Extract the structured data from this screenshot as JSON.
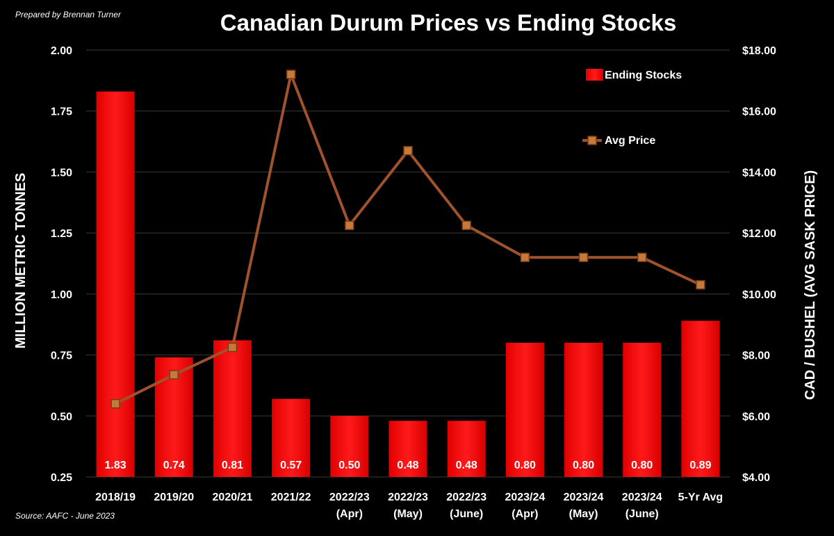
{
  "credit": "Prepared by Brennan Turner",
  "source": "Source: AAFC - June 2023",
  "chart_data": {
    "type": "bar",
    "title": "Canadian Durum Prices vs Ending Stocks",
    "categories": [
      [
        "2018/19"
      ],
      [
        "2019/20"
      ],
      [
        "2020/21"
      ],
      [
        "2021/22"
      ],
      [
        "2022/23",
        "(Apr)"
      ],
      [
        "2022/23",
        "(May)"
      ],
      [
        "2022/23",
        "(June)"
      ],
      [
        "2023/24",
        "(Apr)"
      ],
      [
        "2023/24",
        "(May)"
      ],
      [
        "2023/24",
        "(June)"
      ],
      [
        "5-Yr Avg"
      ]
    ],
    "series": [
      {
        "name": "Ending Stocks",
        "type": "bar",
        "axis": "left",
        "color": "#ff0000",
        "values": [
          1.83,
          0.74,
          0.81,
          0.57,
          0.5,
          0.48,
          0.48,
          0.8,
          0.8,
          0.8,
          0.89
        ],
        "labels": [
          "1.83",
          "0.74",
          "0.81",
          "0.57",
          "0.50",
          "0.48",
          "0.48",
          "0.80",
          "0.80",
          "0.80",
          "0.89"
        ]
      },
      {
        "name": "Avg Price",
        "type": "line",
        "axis": "right",
        "color": "#a0522d",
        "values": [
          6.4,
          7.35,
          8.25,
          17.2,
          12.25,
          14.7,
          12.25,
          11.2,
          11.2,
          11.2,
          10.3
        ]
      }
    ],
    "ylabel": "MILLION METRIC TONNES",
    "ylim": [
      0.25,
      2.0
    ],
    "yticks": [
      "0.25",
      "0.50",
      "0.75",
      "1.00",
      "1.25",
      "1.50",
      "1.75",
      "2.00"
    ],
    "y2label": "CAD / BUSHEL (AVG SASK PRICE)",
    "y2lim": [
      4,
      18
    ],
    "y2ticks": [
      "$4.00",
      "$6.00",
      "$8.00",
      "$10.00",
      "$12.00",
      "$14.00",
      "$16.00",
      "$18.00"
    ],
    "grid": true,
    "legend": "top-right"
  }
}
